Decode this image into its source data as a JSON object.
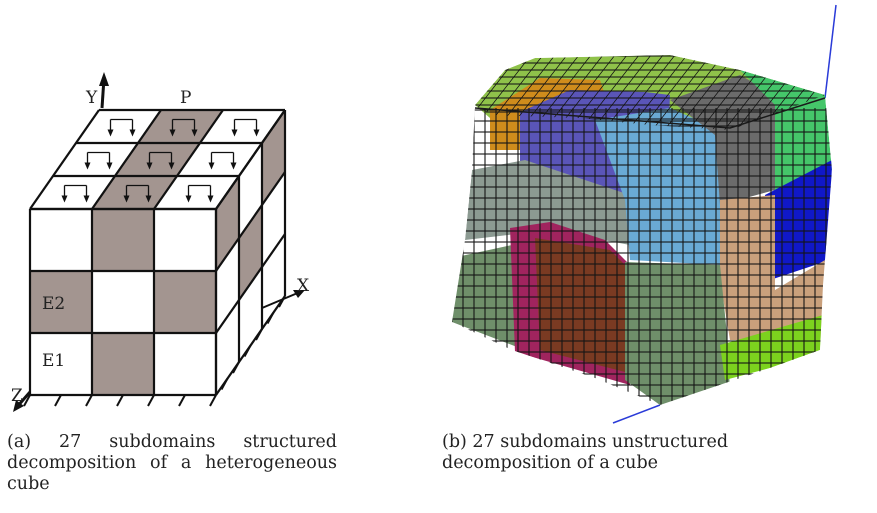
{
  "figure_a": {
    "axis_y": "Y",
    "axis_x": "X",
    "axis_z": "Z",
    "load_label": "P",
    "material_e2": "E2",
    "material_e1": "E1",
    "caption": "(a) 27 subdomains structured decomposition of a heterogeneous cube"
  },
  "figure_b": {
    "caption": "(b) 27 subdomains unstructured decomposition of a cube"
  },
  "colors": {
    "shaded_subdomain": "#a39590",
    "top_green": "#8fc24a",
    "orange": "#cf8c1c",
    "purple": "#5a55b8",
    "light_blue": "#6aaad4",
    "dark_gray": "#6b6b6b",
    "green": "#45c66a",
    "blue": "#1018c8",
    "magenta": "#a0245e",
    "brown": "#7a3a22",
    "tan": "#c9a07c",
    "sage": "#6f8f6a",
    "light_green": "#7cd21e"
  }
}
